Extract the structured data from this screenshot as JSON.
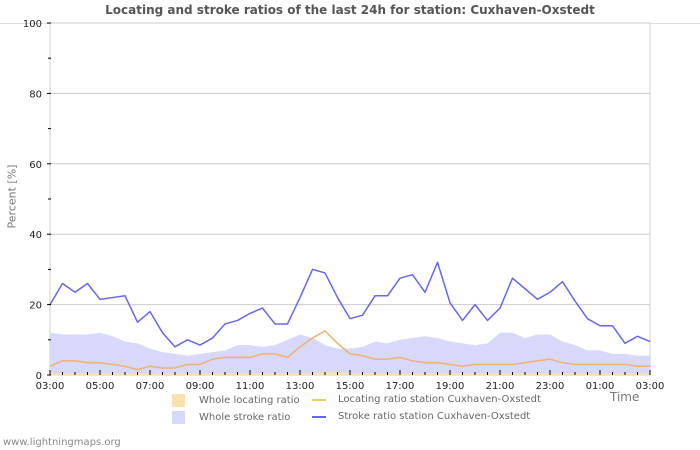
{
  "header": {
    "title": "Locating and stroke ratios of the last 24h for station: Cuxhaven-Oxstedt"
  },
  "axes": {
    "ylabel": "Percent   [%]",
    "xlabel": "Time",
    "yticks": [
      "0",
      "20",
      "40",
      "60",
      "80",
      "100"
    ],
    "xticks": [
      "03:00",
      "05:00",
      "07:00",
      "09:00",
      "11:00",
      "13:00",
      "15:00",
      "17:00",
      "19:00",
      "21:00",
      "23:00",
      "01:00",
      "03:00"
    ]
  },
  "legend": {
    "items": [
      {
        "label": "Whole locating ratio",
        "kind": "area",
        "color": "#fde0b0"
      },
      {
        "label": "Locating ratio station Cuxhaven-Oxstedt",
        "kind": "line",
        "color": "#ffc85a"
      },
      {
        "label": "Whole stroke ratio",
        "kind": "area",
        "color": "#d8d8fa"
      },
      {
        "label": "Stroke ratio station Cuxhaven-Oxstedt",
        "kind": "line",
        "color": "#6666ee"
      }
    ]
  },
  "footer": {
    "source": "www.lightningmaps.org"
  },
  "colors": {
    "stroke_line": "#6666ee",
    "stroke_area": "#d8d8fa",
    "locating_line": "#f0b070",
    "locating_area": "#fde0b0",
    "grid": "#cccccc",
    "plot_border": "#cccccc"
  },
  "chart_data": {
    "type": "line",
    "title": "Locating and stroke ratios of the last 24h for station: Cuxhaven-Oxstedt",
    "xlabel": "Time",
    "ylabel": "Percent [%]",
    "ylim": [
      0,
      100
    ],
    "grid": true,
    "legend_position": "bottom",
    "x_interval_minutes": 30,
    "x_start": "03:00",
    "x_end": "03:00",
    "categories": [
      "03:00",
      "03:30",
      "04:00",
      "04:30",
      "05:00",
      "05:30",
      "06:00",
      "06:30",
      "07:00",
      "07:30",
      "08:00",
      "08:30",
      "09:00",
      "09:30",
      "10:00",
      "10:30",
      "11:00",
      "11:30",
      "12:00",
      "12:30",
      "13:00",
      "13:30",
      "14:00",
      "14:30",
      "15:00",
      "15:30",
      "16:00",
      "16:30",
      "17:00",
      "17:30",
      "18:00",
      "18:30",
      "19:00",
      "19:30",
      "20:00",
      "20:30",
      "21:00",
      "21:30",
      "22:00",
      "22:30",
      "23:00",
      "23:30",
      "00:00",
      "00:30",
      "01:00",
      "01:30",
      "02:00",
      "02:30",
      "03:00"
    ],
    "series": [
      {
        "name": "Whole locating ratio",
        "type": "area",
        "values": [
          0.5,
          0.5,
          0.5,
          0.5,
          0.5,
          0.5,
          0.5,
          0.5,
          0.5,
          0.5,
          0.5,
          0.5,
          0.5,
          0.5,
          0.5,
          0.5,
          0.5,
          0.5,
          0.5,
          0.5,
          0.5,
          0.5,
          0.8,
          0.8,
          0.5,
          0.5,
          0.5,
          0.5,
          0.5,
          0.5,
          0.5,
          0.5,
          0.5,
          0.5,
          0.5,
          0.5,
          0.5,
          0.5,
          0.5,
          0.5,
          0.5,
          0.5,
          0.5,
          0.5,
          0.5,
          0.5,
          0.5,
          0.5,
          0.5
        ]
      },
      {
        "name": "Whole stroke ratio",
        "type": "area",
        "values": [
          12,
          11.5,
          11.5,
          11.5,
          12,
          11,
          9.5,
          9,
          7.5,
          6.5,
          6,
          5.5,
          6,
          6.5,
          7,
          8.5,
          8.5,
          8,
          8.5,
          10,
          11.5,
          10.5,
          8.5,
          7.5,
          7.5,
          8,
          9.5,
          9,
          10,
          10.5,
          11,
          10.5,
          9.5,
          9,
          8.5,
          9,
          12,
          12,
          10.5,
          11.5,
          11.5,
          9.5,
          8.5,
          7,
          7,
          6,
          6,
          5.5,
          5.5
        ]
      },
      {
        "name": "Locating ratio station Cuxhaven-Oxstedt",
        "type": "line",
        "values": [
          2.5,
          4,
          4,
          3.5,
          3.5,
          3,
          2.5,
          1.5,
          2.5,
          2,
          2,
          3,
          3,
          4.5,
          5,
          5,
          5,
          6,
          6,
          5,
          8,
          10.5,
          12.5,
          9,
          6,
          5.5,
          4.5,
          4.5,
          5,
          4,
          3.5,
          3.5,
          3,
          2.5,
          3,
          3,
          3,
          3,
          3.5,
          4,
          4.5,
          3.5,
          3,
          3,
          3,
          3,
          3,
          2.5,
          2.5
        ]
      },
      {
        "name": "Stroke ratio station Cuxhaven-Oxstedt",
        "type": "line",
        "values": [
          20,
          26,
          23.5,
          26,
          21.5,
          22,
          22.5,
          15,
          18,
          12,
          8,
          10,
          8.5,
          10.5,
          14.5,
          15.5,
          17.5,
          19,
          14.5,
          14.5,
          22,
          30,
          29,
          22,
          16,
          17,
          22.5,
          22.5,
          27.5,
          28.5,
          23.5,
          32,
          20.5,
          15.5,
          20,
          15.5,
          19,
          27.5,
          24.5,
          21.5,
          23.5,
          26.5,
          21,
          16,
          14,
          14,
          9,
          11,
          9.5
        ]
      }
    ]
  }
}
